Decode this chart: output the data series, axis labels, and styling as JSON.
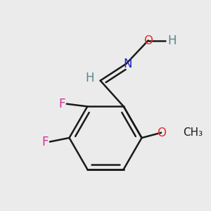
{
  "background_color": "#ebebeb",
  "bond_color": "#1a1a1a",
  "bond_width": 1.8,
  "figsize": [
    3.0,
    3.0
  ],
  "dpi": 100,
  "xlim": [
    -0.75,
    0.85
  ],
  "ylim": [
    -0.65,
    0.85
  ]
}
